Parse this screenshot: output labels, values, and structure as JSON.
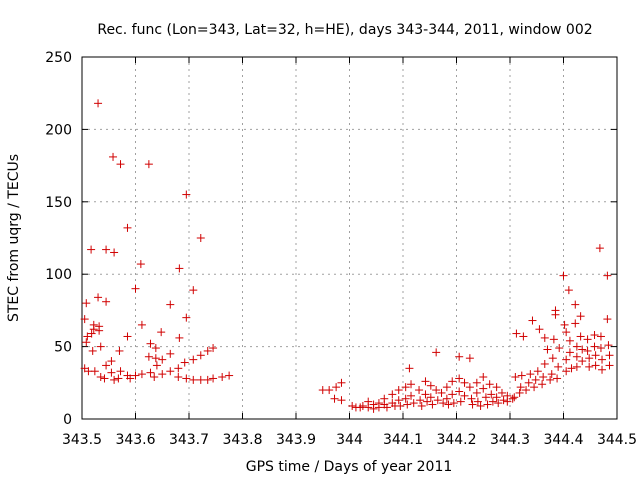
{
  "chart_data": {
    "type": "scatter",
    "title": "Rec. func (Lon=343, Lat=32, h=HE), days 343-344, 2011, window 002",
    "xlabel": "GPS time / Days of year 2011",
    "ylabel": "STEC from uqrg / TECUs",
    "xlim": [
      343.5,
      344.5
    ],
    "ylim": [
      0,
      250
    ],
    "xticks": [
      343.5,
      343.6,
      343.7,
      343.8,
      343.9,
      344.0,
      344.1,
      344.2,
      344.3,
      344.4,
      344.5
    ],
    "xtick_labels": [
      "343.5",
      "343.6",
      "343.7",
      "343.8",
      "343.9",
      "344",
      "344.1",
      "344.2",
      "344.3",
      "344.4",
      "344.5"
    ],
    "yticks": [
      0,
      50,
      100,
      150,
      200,
      250
    ],
    "ytick_labels": [
      "0",
      "50",
      "100",
      "150",
      "200",
      "250"
    ],
    "grid": true,
    "marker": "+",
    "marker_color": "#d00000",
    "points": [
      [
        343.508,
        80
      ],
      [
        343.505,
        69
      ],
      [
        343.51,
        57
      ],
      [
        343.508,
        53
      ],
      [
        343.505,
        35
      ],
      [
        343.512,
        33
      ],
      [
        343.522,
        65
      ],
      [
        343.522,
        62
      ],
      [
        343.518,
        59
      ],
      [
        343.52,
        47
      ],
      [
        343.524,
        33
      ],
      [
        343.53,
        218
      ],
      [
        343.53,
        84
      ],
      [
        343.532,
        64
      ],
      [
        343.532,
        61
      ],
      [
        343.535,
        50
      ],
      [
        343.535,
        29
      ],
      [
        343.517,
        117
      ],
      [
        343.545,
        117
      ],
      [
        343.545,
        81
      ],
      [
        343.545,
        37
      ],
      [
        343.542,
        28
      ],
      [
        343.558,
        181
      ],
      [
        343.56,
        115
      ],
      [
        343.555,
        40
      ],
      [
        343.555,
        32
      ],
      [
        343.56,
        27
      ],
      [
        343.572,
        176
      ],
      [
        343.57,
        47
      ],
      [
        343.572,
        33
      ],
      [
        343.568,
        28
      ],
      [
        343.585,
        132
      ],
      [
        343.585,
        57
      ],
      [
        343.585,
        30
      ],
      [
        343.59,
        28
      ],
      [
        343.6,
        90
      ],
      [
        343.6,
        30
      ],
      [
        343.61,
        107
      ],
      [
        343.612,
        65
      ],
      [
        343.612,
        31
      ],
      [
        343.625,
        176
      ],
      [
        343.628,
        52
      ],
      [
        343.625,
        43
      ],
      [
        343.628,
        32
      ],
      [
        343.638,
        49
      ],
      [
        343.638,
        42
      ],
      [
        343.64,
        37
      ],
      [
        343.635,
        29
      ],
      [
        343.648,
        60
      ],
      [
        343.65,
        41
      ],
      [
        343.65,
        31
      ],
      [
        343.665,
        79
      ],
      [
        343.665,
        45
      ],
      [
        343.665,
        33
      ],
      [
        343.682,
        104
      ],
      [
        343.682,
        56
      ],
      [
        343.68,
        35
      ],
      [
        343.68,
        29
      ],
      [
        343.695,
        155
      ],
      [
        343.695,
        70
      ],
      [
        343.695,
        28
      ],
      [
        343.692,
        39
      ],
      [
        343.708,
        89
      ],
      [
        343.708,
        41
      ],
      [
        343.708,
        27
      ],
      [
        343.722,
        125
      ],
      [
        343.722,
        44
      ],
      [
        343.722,
        27
      ],
      [
        343.735,
        47
      ],
      [
        343.735,
        27
      ],
      [
        343.745,
        49
      ],
      [
        343.745,
        28
      ],
      [
        343.762,
        29
      ],
      [
        343.775,
        30
      ],
      [
        343.95,
        20
      ],
      [
        343.962,
        20
      ],
      [
        343.975,
        22
      ],
      [
        343.972,
        14
      ],
      [
        343.985,
        13
      ],
      [
        343.985,
        25
      ],
      [
        344.005,
        9
      ],
      [
        344.012,
        8
      ],
      [
        344.02,
        8
      ],
      [
        344.025,
        9
      ],
      [
        344.035,
        12
      ],
      [
        344.035,
        8
      ],
      [
        344.045,
        10
      ],
      [
        344.045,
        7
      ],
      [
        344.055,
        11
      ],
      [
        344.055,
        8
      ],
      [
        344.065,
        14
      ],
      [
        344.065,
        10
      ],
      [
        344.07,
        8
      ],
      [
        344.08,
        17
      ],
      [
        344.08,
        11
      ],
      [
        344.085,
        9
      ],
      [
        344.092,
        20
      ],
      [
        344.092,
        13
      ],
      [
        344.095,
        9
      ],
      [
        344.105,
        22
      ],
      [
        344.105,
        14
      ],
      [
        344.108,
        10
      ],
      [
        344.112,
        35
      ],
      [
        344.115,
        24
      ],
      [
        344.115,
        16
      ],
      [
        344.12,
        11
      ],
      [
        344.13,
        20
      ],
      [
        344.132,
        13
      ],
      [
        344.135,
        9
      ],
      [
        344.142,
        26
      ],
      [
        344.142,
        17
      ],
      [
        344.145,
        12
      ],
      [
        344.152,
        23
      ],
      [
        344.152,
        15
      ],
      [
        344.155,
        10
      ],
      [
        344.162,
        46
      ],
      [
        344.162,
        20
      ],
      [
        344.165,
        13
      ],
      [
        344.172,
        18
      ],
      [
        344.175,
        11
      ],
      [
        344.182,
        22
      ],
      [
        344.182,
        14
      ],
      [
        344.185,
        10
      ],
      [
        344.192,
        26
      ],
      [
        344.192,
        17
      ],
      [
        344.195,
        11
      ],
      [
        344.205,
        43
      ],
      [
        344.205,
        28
      ],
      [
        344.205,
        19
      ],
      [
        344.208,
        12
      ],
      [
        344.215,
        25
      ],
      [
        344.215,
        16
      ],
      [
        344.225,
        42
      ],
      [
        344.225,
        22
      ],
      [
        344.228,
        14
      ],
      [
        344.23,
        10
      ],
      [
        344.238,
        25
      ],
      [
        344.238,
        18
      ],
      [
        344.24,
        12
      ],
      [
        344.245,
        9
      ],
      [
        344.25,
        29
      ],
      [
        344.25,
        21
      ],
      [
        344.255,
        15
      ],
      [
        344.258,
        10
      ],
      [
        344.262,
        24
      ],
      [
        344.265,
        17
      ],
      [
        344.268,
        12
      ],
      [
        344.275,
        22
      ],
      [
        344.275,
        15
      ],
      [
        344.278,
        11
      ],
      [
        344.285,
        18
      ],
      [
        344.288,
        13
      ],
      [
        344.295,
        16
      ],
      [
        344.295,
        12
      ],
      [
        344.305,
        14
      ],
      [
        344.308,
        15
      ],
      [
        344.31,
        29
      ],
      [
        344.312,
        59
      ],
      [
        344.318,
        18
      ],
      [
        344.32,
        22
      ],
      [
        344.322,
        30
      ],
      [
        344.325,
        57
      ],
      [
        344.33,
        20
      ],
      [
        344.335,
        25
      ],
      [
        344.338,
        31
      ],
      [
        344.342,
        68
      ],
      [
        344.345,
        22
      ],
      [
        344.348,
        27
      ],
      [
        344.352,
        33
      ],
      [
        344.355,
        62
      ],
      [
        344.36,
        24
      ],
      [
        344.362,
        29
      ],
      [
        344.365,
        38
      ],
      [
        344.365,
        56
      ],
      [
        344.37,
        48
      ],
      [
        344.375,
        27
      ],
      [
        344.378,
        31
      ],
      [
        344.38,
        42
      ],
      [
        344.382,
        55
      ],
      [
        344.385,
        75
      ],
      [
        344.385,
        72
      ],
      [
        344.388,
        28
      ],
      [
        344.39,
        36
      ],
      [
        344.392,
        49
      ],
      [
        344.4,
        99
      ],
      [
        344.402,
        65
      ],
      [
        344.405,
        60
      ],
      [
        344.405,
        41
      ],
      [
        344.405,
        33
      ],
      [
        344.41,
        89
      ],
      [
        344.412,
        54
      ],
      [
        344.412,
        46
      ],
      [
        344.415,
        35
      ],
      [
        344.422,
        79
      ],
      [
        344.422,
        66
      ],
      [
        344.425,
        50
      ],
      [
        344.425,
        43
      ],
      [
        344.425,
        36
      ],
      [
        344.432,
        71
      ],
      [
        344.432,
        57
      ],
      [
        344.435,
        48
      ],
      [
        344.435,
        40
      ],
      [
        344.445,
        55
      ],
      [
        344.445,
        47
      ],
      [
        344.448,
        42
      ],
      [
        344.448,
        36
      ],
      [
        344.458,
        58
      ],
      [
        344.458,
        50
      ],
      [
        344.46,
        44
      ],
      [
        344.46,
        37
      ],
      [
        344.468,
        118
      ],
      [
        344.47,
        57
      ],
      [
        344.47,
        49
      ],
      [
        344.472,
        41
      ],
      [
        344.472,
        34
      ],
      [
        344.482,
        99
      ],
      [
        344.482,
        69
      ],
      [
        344.484,
        51
      ],
      [
        344.486,
        44
      ],
      [
        344.486,
        37
      ]
    ]
  }
}
